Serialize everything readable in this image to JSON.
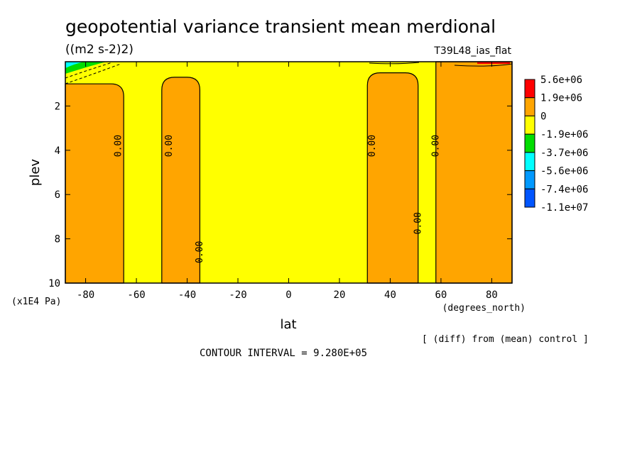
{
  "chart_data": {
    "type": "contour",
    "title": "geopotential variance transient mean merdional",
    "units": "((m2 s-2)2)",
    "run_label": "T39L48_ias_flat",
    "xlabel": "lat",
    "x_units": "(degrees_north)",
    "ylabel": "plev",
    "y_units": "(x1E4 Pa)",
    "xlim": [
      -88,
      88
    ],
    "ylim": [
      10,
      0
    ],
    "x_ticks": [
      -80,
      -60,
      -40,
      -20,
      0,
      20,
      40,
      60,
      80
    ],
    "y_ticks": [
      2,
      4,
      6,
      8,
      10
    ],
    "x_tick_labels": [
      "-80",
      "-60",
      "-40",
      "-20",
      "0",
      "20",
      "40",
      "60",
      "80"
    ],
    "y_tick_labels": [
      "2",
      "4",
      "6",
      "8",
      "10"
    ],
    "colorbar": {
      "labels": [
        "5.6e+06",
        "1.9e+06",
        "0",
        "-1.9e+06",
        "-3.7e+06",
        "-5.6e+06",
        "-7.4e+06",
        "-1.1e+07"
      ],
      "colors": [
        "#ff0000",
        "#ffa500",
        "#ffff00",
        "#00dd00",
        "#00ffff",
        "#0099ff",
        "#0055ff"
      ]
    },
    "regions": [
      {
        "level": "0 to 1.9e+06",
        "color": "#ffa500",
        "lat_range": [
          -88,
          -65
        ],
        "plev_range": [
          1.0,
          10
        ]
      },
      {
        "level": "0 to 1.9e+06",
        "color": "#ffa500",
        "lat_range": [
          -50,
          -35
        ],
        "plev_range": [
          0.7,
          10
        ]
      },
      {
        "level": "0 to 1.9e+06",
        "color": "#ffa500",
        "lat_range": [
          31,
          51
        ],
        "plev_range": [
          0.5,
          10
        ]
      },
      {
        "level": "0 to 1.9e+06",
        "color": "#ffa500",
        "lat_range": [
          58,
          88
        ],
        "plev_range": [
          0,
          10
        ]
      }
    ],
    "contour_labels": [
      {
        "text": "0.00",
        "lat": -67,
        "plev": 3.8
      },
      {
        "text": "0.00",
        "lat": -47,
        "plev": 3.8
      },
      {
        "text": "0.00",
        "lat": -35,
        "plev": 8.6
      },
      {
        "text": "0.00",
        "lat": 33,
        "plev": 3.8
      },
      {
        "text": "0.00",
        "lat": 51,
        "plev": 7.3
      },
      {
        "text": "0.00",
        "lat": 58,
        "plev": 3.8
      }
    ],
    "diff_note": "[ (diff) from (mean) control ]",
    "contour_interval": "CONTOUR INTERVAL = 9.280E+05"
  }
}
